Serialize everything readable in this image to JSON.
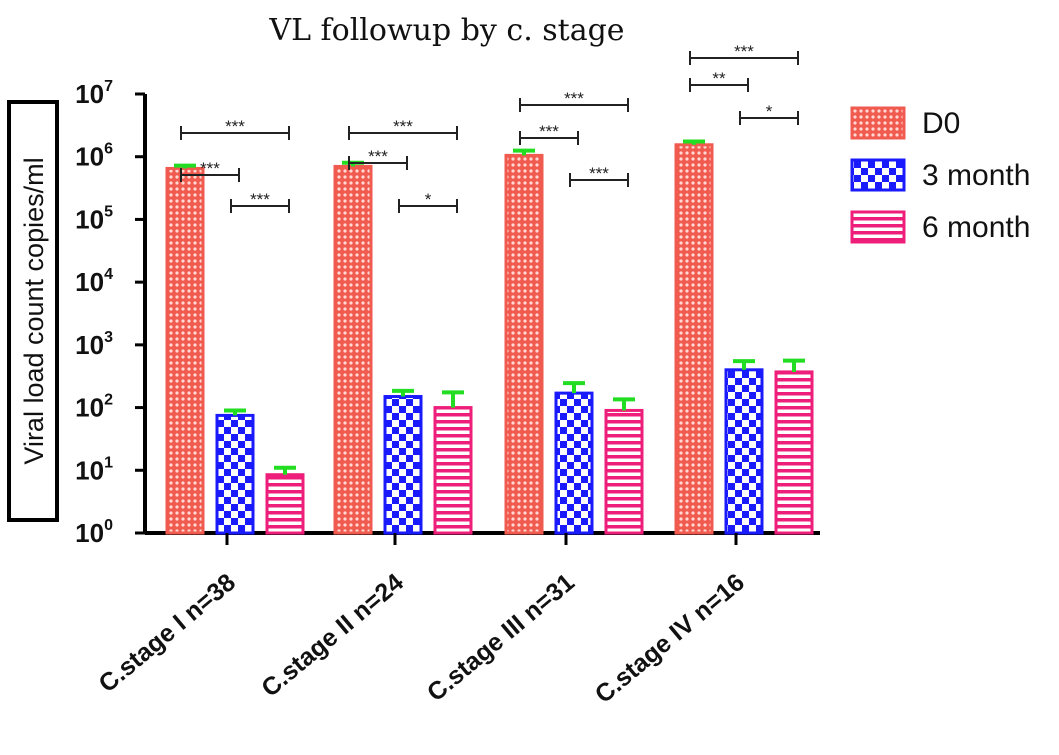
{
  "chart_data": {
    "type": "bar",
    "title": "VL followup by c. stage",
    "ylabel": "Viral load count copies/ml",
    "xlabel": "",
    "yscale": "log10",
    "ylim": [
      1,
      10000000
    ],
    "yticks": [
      {
        "base": "10",
        "exp": "0",
        "value": 1
      },
      {
        "base": "10",
        "exp": "1",
        "value": 10
      },
      {
        "base": "10",
        "exp": "2",
        "value": 100
      },
      {
        "base": "10",
        "exp": "3",
        "value": 1000
      },
      {
        "base": "10",
        "exp": "4",
        "value": 10000
      },
      {
        "base": "10",
        "exp": "5",
        "value": 100000
      },
      {
        "base": "10",
        "exp": "6",
        "value": 1000000
      },
      {
        "base": "10",
        "exp": "7",
        "value": 10000000
      }
    ],
    "categories": [
      "C.stage I n=38",
      "C.stage II n=24",
      "C.stage III n=31",
      "C.stage IV n=16"
    ],
    "series": [
      {
        "name": "D0",
        "color": "#f05a4f",
        "pattern": "dots",
        "values": [
          650000,
          700000,
          1050000,
          1550000
        ],
        "err_upper": [
          720000,
          800000,
          1250000,
          1750000
        ]
      },
      {
        "name": "3 month",
        "color": "#1a1aff",
        "pattern": "checker",
        "values": [
          75,
          150,
          170,
          400
        ],
        "err_upper": [
          90,
          185,
          245,
          550
        ]
      },
      {
        "name": "6 month",
        "color": "#ee1f7a",
        "pattern": "stripes",
        "values": [
          8.5,
          100,
          90,
          370
        ],
        "err_upper": [
          11,
          175,
          135,
          560
        ]
      }
    ],
    "error_bar_color": "#22dd22",
    "significance": [
      {
        "category": 0,
        "from": "D0",
        "to": "6 month",
        "label": "***"
      },
      {
        "category": 0,
        "from": "D0",
        "to": "3 month",
        "label": "***"
      },
      {
        "category": 0,
        "from": "3 month",
        "to": "6 month",
        "label": "***"
      },
      {
        "category": 1,
        "from": "D0",
        "to": "6 month",
        "label": "***"
      },
      {
        "category": 1,
        "from": "D0",
        "to": "3 month",
        "label": "***"
      },
      {
        "category": 1,
        "from": "3 month",
        "to": "6 month",
        "label": "*"
      },
      {
        "category": 2,
        "from": "D0",
        "to": "6 month",
        "label": "***"
      },
      {
        "category": 2,
        "from": "D0",
        "to": "3 month",
        "label": "***"
      },
      {
        "category": 2,
        "from": "3 month",
        "to": "6 month",
        "label": "***"
      },
      {
        "category": 3,
        "from": "D0",
        "to": "6 month",
        "label": "***"
      },
      {
        "category": 3,
        "from": "D0",
        "to": "3 month",
        "label": "**"
      },
      {
        "category": 3,
        "from": "3 month",
        "to": "6 month",
        "label": "*"
      }
    ],
    "legend": {
      "position": "right",
      "entries": [
        "D0",
        "3 month",
        "6 month"
      ]
    },
    "grid": false
  }
}
